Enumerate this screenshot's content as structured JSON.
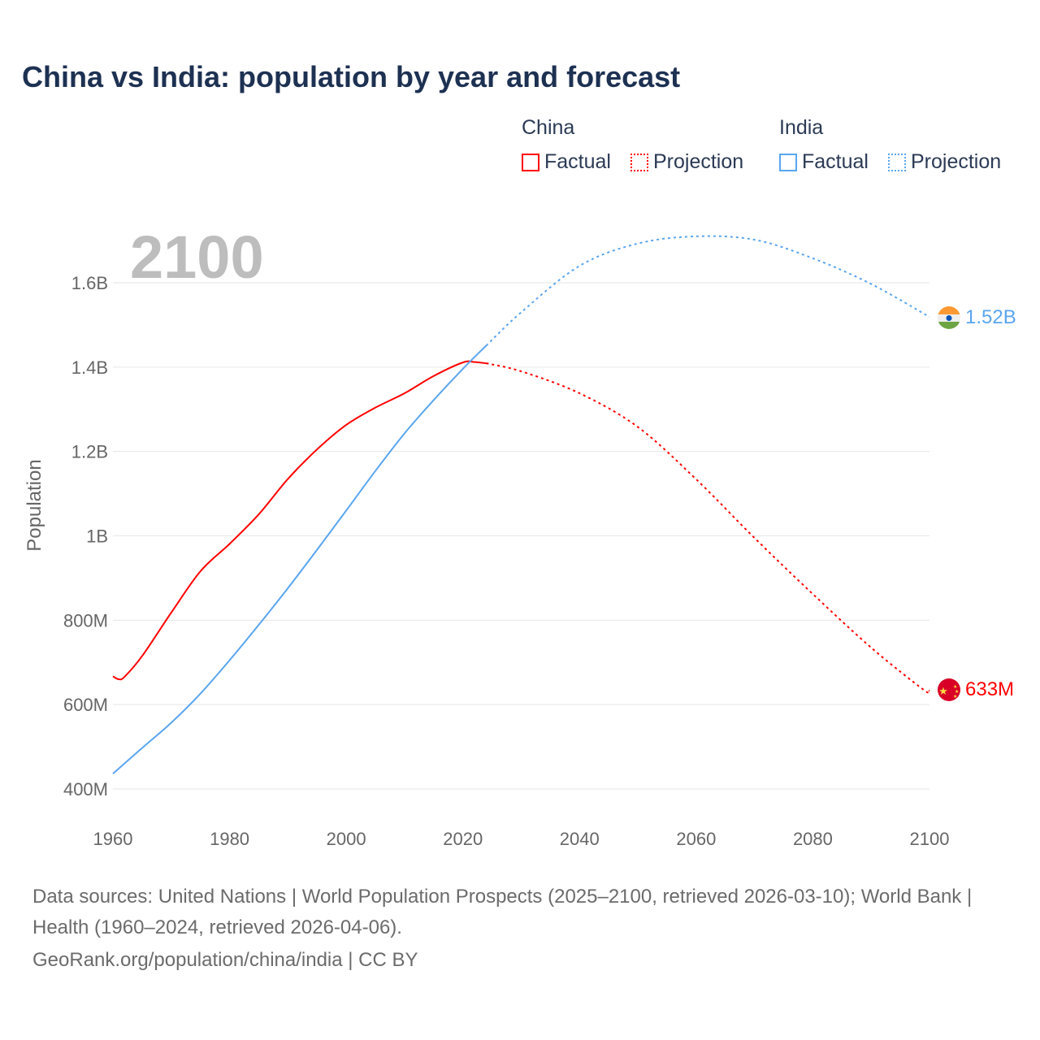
{
  "title": "China vs India: population by year and forecast",
  "legend": {
    "groups": [
      {
        "name": "China",
        "factual": "Factual",
        "projection": "Projection",
        "color": "#ff0000"
      },
      {
        "name": "India",
        "factual": "Factual",
        "projection": "Projection",
        "color": "#5aa5ee"
      }
    ]
  },
  "year_label": "2100",
  "footer": {
    "sources": "Data sources: United Nations | World Population Prospects (2025–2100, retrieved 2026-03-10); World Bank | Health (1960–2024, retrieved 2026-04-06).",
    "credit": "GeoRank.org/population/china/india | CC BY"
  },
  "chart_data": {
    "type": "line",
    "title": "China vs India: population by year and forecast",
    "xlabel": "",
    "ylabel": "Population",
    "xlim": [
      1960,
      2100
    ],
    "ylim": [
      400,
      1600
    ],
    "unit": "millions",
    "x_ticks": [
      "1960",
      "1980",
      "2000",
      "2020",
      "2040",
      "2060",
      "2080",
      "2100"
    ],
    "y_ticks": [
      {
        "v": 400,
        "label": "400M"
      },
      {
        "v": 600,
        "label": "600M"
      },
      {
        "v": 800,
        "label": "800M"
      },
      {
        "v": 1000,
        "label": "1B"
      },
      {
        "v": 1200,
        "label": "1.2B"
      },
      {
        "v": 1400,
        "label": "1.4B"
      },
      {
        "v": 1600,
        "label": "1.6B"
      }
    ],
    "grid": true,
    "legend_position": "top-right",
    "series": [
      {
        "name": "China",
        "color": "#ff0000",
        "end_label": "633M",
        "factual": {
          "x": [
            1960,
            1961,
            1962,
            1965,
            1970,
            1975,
            1980,
            1985,
            1990,
            1995,
            2000,
            2005,
            2010,
            2015,
            2020,
            2022,
            2024
          ],
          "y": [
            667,
            660,
            666,
            715,
            818,
            916,
            981,
            1051,
            1135,
            1205,
            1263,
            1304,
            1338,
            1379,
            1411,
            1412,
            1409
          ]
        },
        "projection": {
          "x": [
            2024,
            2030,
            2040,
            2050,
            2060,
            2070,
            2080,
            2090,
            2099,
            2100
          ],
          "y": [
            1409,
            1390,
            1338,
            1258,
            1134,
            995,
            862,
            735,
            635,
            633
          ]
        }
      },
      {
        "name": "India",
        "color": "#5aa5ee",
        "end_label": "1.52B",
        "factual": {
          "x": [
            1960,
            1965,
            1970,
            1975,
            1980,
            1985,
            1990,
            1995,
            2000,
            2005,
            2010,
            2015,
            2020,
            2024
          ],
          "y": [
            436,
            497,
            557,
            626,
            705,
            789,
            876,
            967,
            1060,
            1154,
            1243,
            1322,
            1396,
            1451
          ]
        },
        "projection": {
          "x": [
            2024,
            2030,
            2040,
            2050,
            2060,
            2070,
            2080,
            2090,
            2100
          ],
          "y": [
            1451,
            1530,
            1640,
            1693,
            1710,
            1702,
            1658,
            1597,
            1519
          ]
        }
      }
    ]
  }
}
